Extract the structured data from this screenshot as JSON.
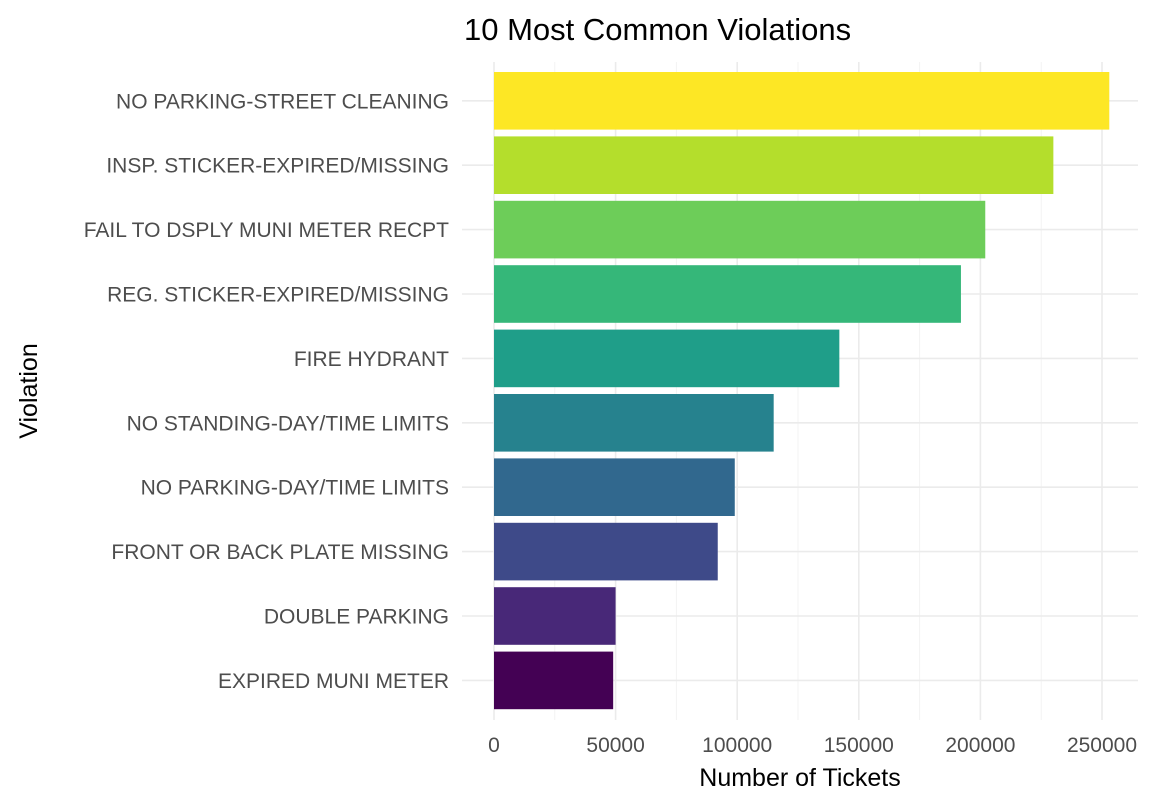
{
  "chart_data": {
    "type": "bar",
    "orientation": "horizontal",
    "title": "10 Most Common Violations",
    "xlabel": "Number of Tickets",
    "ylabel": "Violation",
    "xlim": [
      0,
      262000
    ],
    "x_ticks": [
      0,
      50000,
      100000,
      150000,
      200000,
      250000
    ],
    "x_tick_labels": [
      "0",
      "50000",
      "100000",
      "150000",
      "200000",
      "250000"
    ],
    "grid": true,
    "legend": "none",
    "categories": [
      "NO PARKING-STREET CLEANING",
      "INSP. STICKER-EXPIRED/MISSING",
      "FAIL TO DSPLY MUNI METER RECPT",
      "REG. STICKER-EXPIRED/MISSING",
      "FIRE HYDRANT",
      "NO STANDING-DAY/TIME LIMITS",
      "NO PARKING-DAY/TIME LIMITS",
      "FRONT OR BACK PLATE MISSING",
      "DOUBLE PARKING",
      "EXPIRED MUNI METER"
    ],
    "values": [
      253000,
      230000,
      202000,
      192000,
      142000,
      115000,
      99000,
      92000,
      50000,
      49000
    ],
    "colors": [
      "#FDE725",
      "#B4DE2C",
      "#6DCD59",
      "#35B779",
      "#1F9E89",
      "#26828E",
      "#31688E",
      "#3E4A89",
      "#482878",
      "#440154"
    ]
  }
}
